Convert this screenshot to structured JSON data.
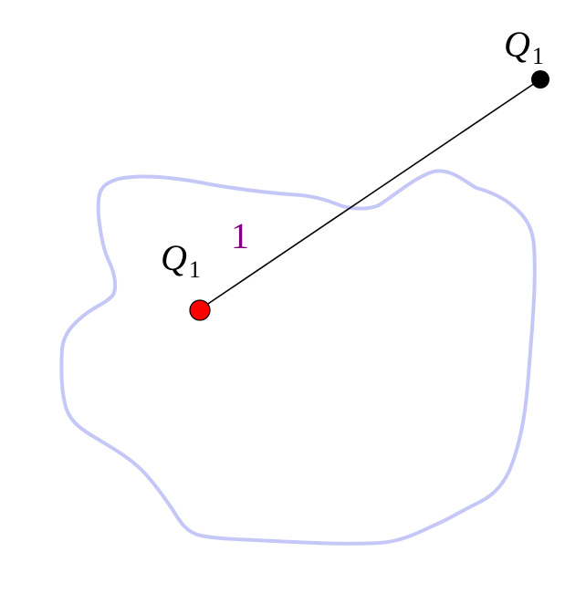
{
  "colors": {
    "background": "#ffffff",
    "region": "#c5c8f7",
    "segment": "#000000",
    "inner_point": "#ff0000",
    "outer_point": "#000000",
    "length_label": "#800080",
    "point_label": "#000000"
  },
  "points": {
    "outer": {
      "name": "Q",
      "subscript": "1"
    },
    "inner": {
      "name": "Q",
      "subscript": "1"
    }
  },
  "segment": {
    "length_label": "1"
  }
}
